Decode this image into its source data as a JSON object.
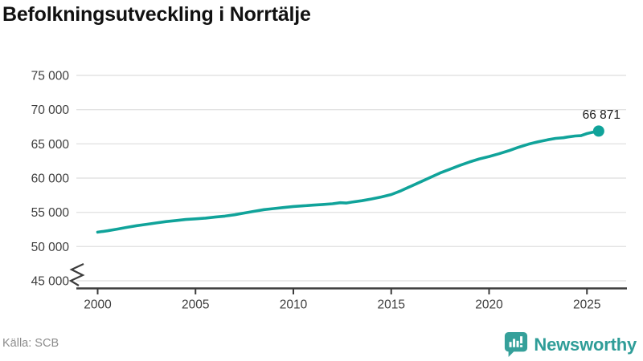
{
  "title": "Befolkningsutveckling i Norrtälje",
  "source": "Källa: SCB",
  "branding": {
    "name": "Newsworthy",
    "color": "#2f9d98"
  },
  "colors": {
    "line": "#10a39a",
    "marker": "#10a39a",
    "grid": "#e3e3e3",
    "axis": "#3c3c3c",
    "tick_label": "#3e3e3e",
    "end_label": "#1c1c1c",
    "title": "#111111",
    "source": "#8c8c8c"
  },
  "chart_data": {
    "type": "line",
    "title": "Befolkningsutveckling i Norrtälje",
    "xlabel": "",
    "ylabel": "",
    "grid": "horizontal",
    "legend": "none",
    "axis_break": true,
    "ylim": [
      45000,
      77000
    ],
    "xlim": [
      1999,
      2027
    ],
    "y_ticks": [
      {
        "value": 75000,
        "label": "75 000"
      },
      {
        "value": 70000,
        "label": "70 000"
      },
      {
        "value": 65000,
        "label": "65 000"
      },
      {
        "value": 60000,
        "label": "60 000"
      },
      {
        "value": 55000,
        "label": "55 000"
      },
      {
        "value": 50000,
        "label": "50 000"
      },
      {
        "value": 45000,
        "label": "45 000"
      }
    ],
    "x_ticks": [
      {
        "value": 2000,
        "label": "2000"
      },
      {
        "value": 2005,
        "label": "2005"
      },
      {
        "value": 2010,
        "label": "2010"
      },
      {
        "value": 2015,
        "label": "2015"
      },
      {
        "value": 2020,
        "label": "2020"
      },
      {
        "value": 2025,
        "label": "2025"
      }
    ],
    "x": [
      2000,
      2000.5,
      2001,
      2001.5,
      2002,
      2002.5,
      2003,
      2003.5,
      2004,
      2004.5,
      2005,
      2005.5,
      2006,
      2006.5,
      2007,
      2007.5,
      2008,
      2008.5,
      2009,
      2009.5,
      2010,
      2010.5,
      2011,
      2011.5,
      2012,
      2012.4,
      2012.7,
      2013,
      2013.5,
      2014,
      2014.5,
      2015,
      2015.5,
      2016,
      2016.5,
      2017,
      2017.5,
      2018,
      2018.5,
      2019,
      2019.5,
      2020,
      2020.5,
      2021,
      2021.5,
      2022,
      2022.5,
      2023,
      2023.4,
      2023.8,
      2024,
      2024.4,
      2024.7,
      2025,
      2025.3,
      2025.6
    ],
    "values": [
      52100,
      52300,
      52550,
      52800,
      53050,
      53250,
      53450,
      53650,
      53800,
      53950,
      54050,
      54150,
      54300,
      54450,
      54650,
      54900,
      55150,
      55400,
      55550,
      55700,
      55850,
      55950,
      56050,
      56150,
      56250,
      56400,
      56350,
      56500,
      56700,
      56950,
      57250,
      57600,
      58150,
      58800,
      59450,
      60100,
      60750,
      61300,
      61850,
      62350,
      62800,
      63150,
      63550,
      64000,
      64500,
      64950,
      65300,
      65600,
      65800,
      65900,
      66000,
      66150,
      66200,
      66500,
      66700,
      66871
    ],
    "end_value": 66871,
    "end_label": "66 871"
  }
}
